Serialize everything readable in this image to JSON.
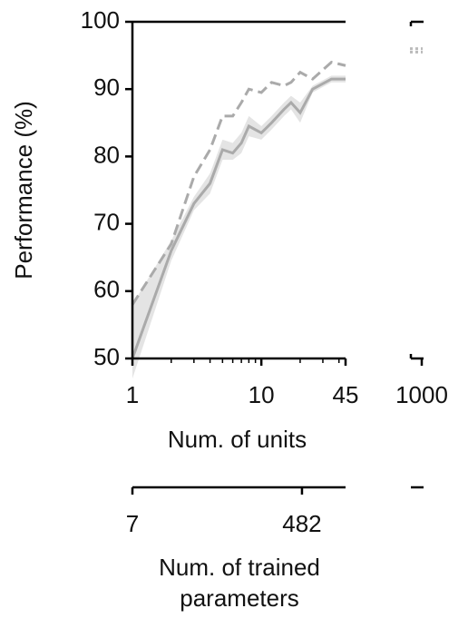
{
  "chart_data": [
    {
      "type": "line",
      "xlabel": "Num. of units",
      "ylabel": "Performance (%)",
      "xscale": "log",
      "x": [
        1,
        2,
        3,
        4,
        5,
        6,
        7,
        8,
        10,
        12,
        15,
        17,
        20,
        25,
        35,
        45
      ],
      "series": [
        {
          "name": "solid",
          "color": "#aaaaaa",
          "dash": false,
          "values": [
            50,
            66,
            73,
            76,
            81,
            80.5,
            82,
            84.5,
            83.5,
            85,
            87,
            88,
            86.5,
            90,
            91.5,
            91.5
          ],
          "lower": [
            47,
            64.5,
            72,
            74.5,
            79.5,
            79.5,
            80.5,
            83,
            82.5,
            84,
            86,
            87,
            85,
            89.5,
            91,
            91
          ],
          "upper": [
            58,
            67.5,
            74,
            77.5,
            82.5,
            82,
            83.5,
            86,
            84.5,
            86,
            88,
            89,
            88,
            90.5,
            92,
            92
          ],
          "band_color": "#e4e4e4"
        },
        {
          "name": "dashed",
          "color": "#aaaaaa",
          "dash": true,
          "values": [
            58,
            67,
            77,
            81,
            86,
            86,
            88,
            90,
            89.5,
            91,
            90.5,
            91,
            92.5,
            91.5,
            94,
            93.5
          ]
        }
      ],
      "xlim": [
        1,
        45
      ],
      "xticks": [
        1,
        10,
        45
      ],
      "xminorticks": [
        2,
        3,
        4,
        5,
        6,
        7,
        8,
        9,
        20,
        30,
        40
      ],
      "ylim": [
        50,
        100
      ],
      "yticks": [
        50,
        60,
        70,
        80,
        90,
        100
      ]
    },
    {
      "type": "side",
      "xticks": [
        1000
      ],
      "series": [
        {
          "name": "dashed",
          "color": "#bbbbbb",
          "values": [
            96
          ]
        },
        {
          "name": "solid",
          "color": "#bbbbbb",
          "values": [
            95.5
          ]
        }
      ]
    },
    {
      "type": "param-axis",
      "xlabel": [
        "Num. of trained",
        "parameters"
      ],
      "xscale": "log",
      "xlim": [
        7,
        1430
      ],
      "xticks": [
        7,
        482
      ]
    }
  ]
}
